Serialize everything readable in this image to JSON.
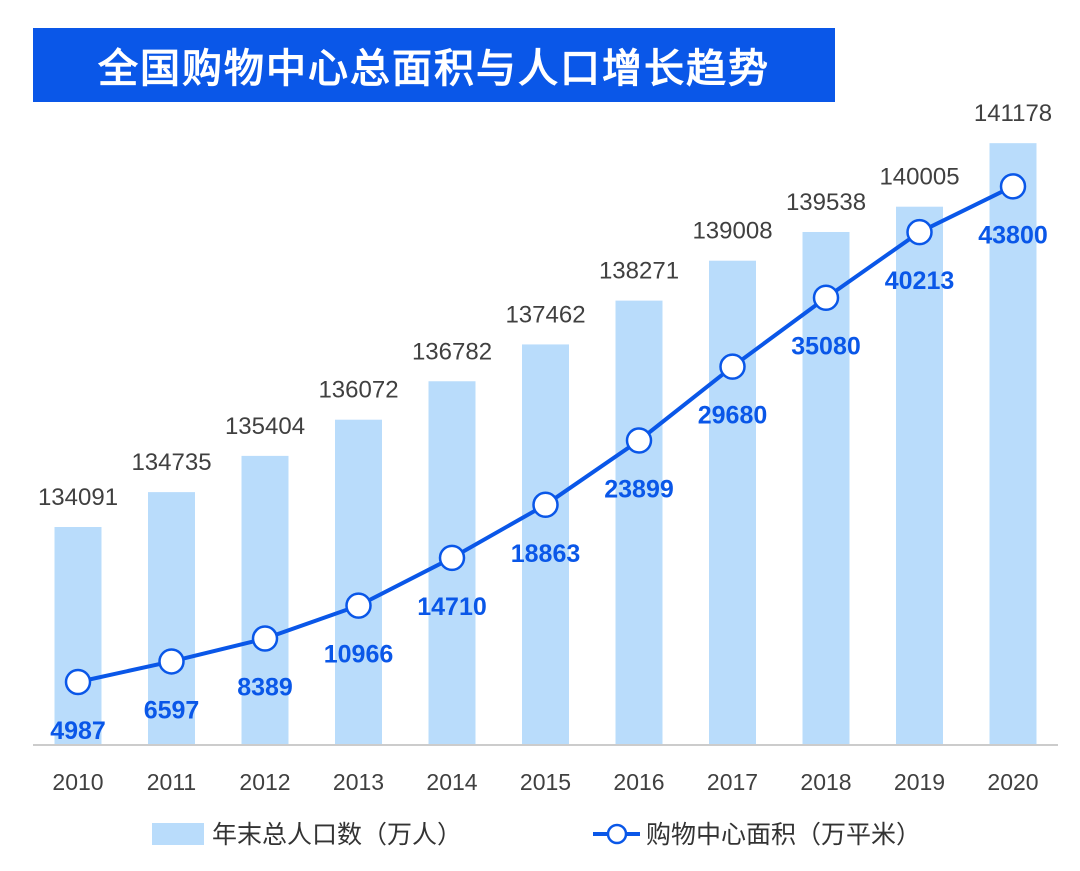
{
  "title": "全国购物中心总面积与人口增长趋势",
  "chart_data": {
    "type": "bar+line",
    "title": "全国购物中心总面积与人口增长趋势",
    "categories": [
      "2010",
      "2011",
      "2012",
      "2013",
      "2014",
      "2015",
      "2016",
      "2017",
      "2018",
      "2019",
      "2020"
    ],
    "series": [
      {
        "name": "年末总人口数（万人）",
        "type": "bar",
        "values": [
          134091,
          134735,
          135404,
          136072,
          136782,
          137462,
          138271,
          139008,
          139538,
          140005,
          141178
        ]
      },
      {
        "name": "购物中心面积（万平米）",
        "type": "line",
        "values": [
          4987,
          6597,
          8389,
          10966,
          14710,
          18863,
          23899,
          29680,
          35080,
          40213,
          43800
        ]
      }
    ],
    "grid": false,
    "legend": "bottom"
  },
  "colors": {
    "title_bg": "#0a57e8",
    "bar": "#b9dcfb",
    "line": "#0a57e8",
    "marker_fill": "#ffffff",
    "axis": "#cccccc"
  }
}
